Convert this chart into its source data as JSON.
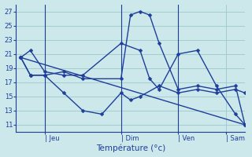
{
  "background_color": "#cce8ea",
  "grid_color": "#9dc8cc",
  "line_color": "#1e3e9a",
  "xlabel": "Température (°c)",
  "ylim": [
    10,
    28
  ],
  "yticks": [
    11,
    13,
    15,
    17,
    19,
    21,
    23,
    25,
    27
  ],
  "xlim": [
    0,
    24
  ],
  "day_ticks": [
    1,
    5,
    13,
    19
  ],
  "day_labels": [
    "Jeu",
    "Dim",
    "Ven",
    "Sam"
  ],
  "vlines": [
    3,
    11,
    17
  ],
  "series": [
    {
      "x": [
        0.5,
        24
      ],
      "y": [
        20.5,
        11.0
      ]
    },
    {
      "x": [
        0.5,
        1.5,
        3,
        5,
        7,
        11,
        13,
        14,
        15,
        17,
        19,
        21,
        23,
        24
      ],
      "y": [
        20.5,
        21.5,
        18.5,
        18.0,
        18.0,
        22.5,
        21.5,
        17.5,
        16.0,
        21.0,
        21.5,
        16.5,
        12.5,
        11.0
      ]
    },
    {
      "x": [
        0.5,
        1.5,
        3,
        5,
        7,
        11,
        12,
        13,
        14,
        15,
        17,
        19,
        21,
        23,
        24
      ],
      "y": [
        20.5,
        18.0,
        18.0,
        18.5,
        17.5,
        17.5,
        26.5,
        27.0,
        26.5,
        22.5,
        16.0,
        16.5,
        16.0,
        16.5,
        11.0
      ]
    },
    {
      "x": [
        0.5,
        1.5,
        3,
        5,
        7,
        9,
        11,
        12,
        13,
        15,
        17,
        19,
        21,
        23,
        24
      ],
      "y": [
        20.5,
        18.0,
        18.0,
        15.5,
        13.0,
        12.5,
        15.5,
        14.5,
        15.0,
        16.5,
        15.5,
        16.0,
        15.5,
        16.0,
        15.5
      ]
    }
  ]
}
